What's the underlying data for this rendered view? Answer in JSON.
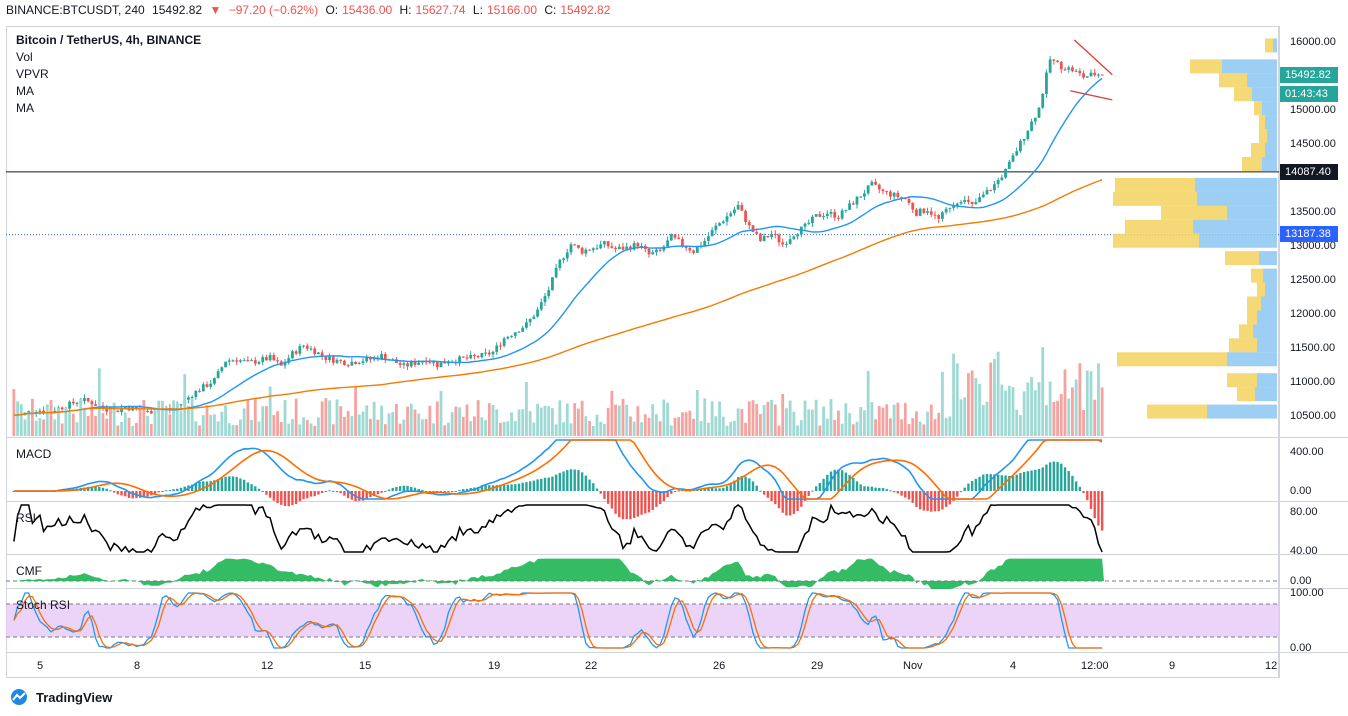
{
  "topbar": {
    "symbol": "BINANCE:BTCUSDT, 240",
    "last": "15492.82",
    "change": "−97.20 (−0.62%)",
    "o_label": "O:",
    "o_value": "15436.00",
    "h_label": "H:",
    "h_value": "15627.74",
    "l_label": "L:",
    "l_value": "15166.00",
    "c_label": "C:",
    "c_value": "15492.82"
  },
  "legend": {
    "title": "Bitcoin / TetherUS, 4h, BINANCE",
    "items": [
      "Vol",
      "VPVR",
      "MA",
      "MA"
    ]
  },
  "panes": {
    "macd": "MACD",
    "rsi": "RSI",
    "cmf": "CMF",
    "stoch": "Stoch RSI"
  },
  "price_scale": {
    "ticks": [
      "16000.00",
      "15000.00",
      "14500.00",
      "13500.00",
      "13000.00",
      "12500.00",
      "12000.00",
      "11500.00",
      "11000.00",
      "10500.00"
    ],
    "last_price": "15492.82",
    "countdown": "01:43:43",
    "level_line": "14087.40",
    "dotted_level": "13187.38"
  },
  "macd_scale": {
    "ticks": [
      "400.00",
      "0.00"
    ]
  },
  "rsi_scale": {
    "ticks": [
      "80.00",
      "40.00"
    ]
  },
  "cmf_scale": {
    "ticks": [
      "0.00"
    ]
  },
  "stoch_scale": {
    "ticks": [
      "100.00",
      "0.00"
    ]
  },
  "time_axis": {
    "ticks": [
      "5",
      "8",
      "12",
      "15",
      "19",
      "22",
      "26",
      "29",
      "Nov",
      "4",
      "12:00",
      "9",
      "12"
    ]
  },
  "footer": {
    "brand": "TradingView"
  },
  "colors": {
    "up": "#26a69a",
    "down": "#ef5350",
    "ma_fast": "#2196f3",
    "ma_slow": "#f57c00",
    "vol_up": "#9fd9d3",
    "vol_down": "#f5a3a1",
    "pattern": "#e53935",
    "stoch_bg": "#e7c9f7",
    "cmf_fill": "#11b04a",
    "macd_line": "#2196f3",
    "signal_line": "#ff6d00"
  },
  "chart_data": [
    {
      "type": "candlestick",
      "title": "Bitcoin / TetherUS, 4h, BINANCE",
      "x_ticks": [
        "5",
        "8",
        "12",
        "15",
        "19",
        "22",
        "26",
        "29",
        "Nov",
        "4",
        "12:00",
        "9",
        "12"
      ],
      "ylim": [
        10300,
        16150
      ],
      "close_path": [
        10600,
        10620,
        10680,
        10650,
        10700,
        10750,
        10820,
        10780,
        10700,
        10650,
        10720,
        10680,
        10640,
        10700,
        10680,
        10760,
        10900,
        11000,
        11100,
        11380,
        11400,
        11350,
        11380,
        11420,
        11300,
        11480,
        11600,
        11520,
        11420,
        11380,
        11350,
        11380,
        11400,
        11450,
        11380,
        11300,
        11350,
        11400,
        11320,
        11380,
        11400,
        11420,
        11450,
        11500,
        11700,
        11800,
        11900,
        12100,
        12400,
        12800,
        13050,
        12950,
        13000,
        13050,
        12980,
        13000,
        13050,
        12900,
        12950,
        13150,
        13050,
        12950,
        13100,
        13300,
        13450,
        13600,
        13300,
        13100,
        13200,
        13050,
        13200,
        13300,
        13450,
        13500,
        13450,
        13600,
        13750,
        13900,
        13800,
        13750,
        13700,
        13500,
        13550,
        13400,
        13600,
        13700,
        13600,
        13750,
        13900,
        14100,
        14400,
        14700,
        15000,
        15700,
        15600,
        15550,
        15450,
        15490
      ],
      "series": [
        {
          "name": "MA",
          "color": "#2196f3"
        },
        {
          "name": "MA",
          "color": "#f57c00"
        }
      ],
      "levels": [
        14087.4,
        13187.38
      ],
      "last": 15492.82
    },
    {
      "type": "line",
      "title": "MACD",
      "ylim": [
        -150,
        550
      ]
    },
    {
      "type": "line",
      "title": "RSI",
      "ylim": [
        30,
        90
      ]
    },
    {
      "type": "area",
      "title": "CMF",
      "ylim": [
        -0.15,
        0.3
      ]
    },
    {
      "type": "line",
      "title": "Stoch RSI",
      "ylim": [
        0,
        105
      ]
    }
  ]
}
